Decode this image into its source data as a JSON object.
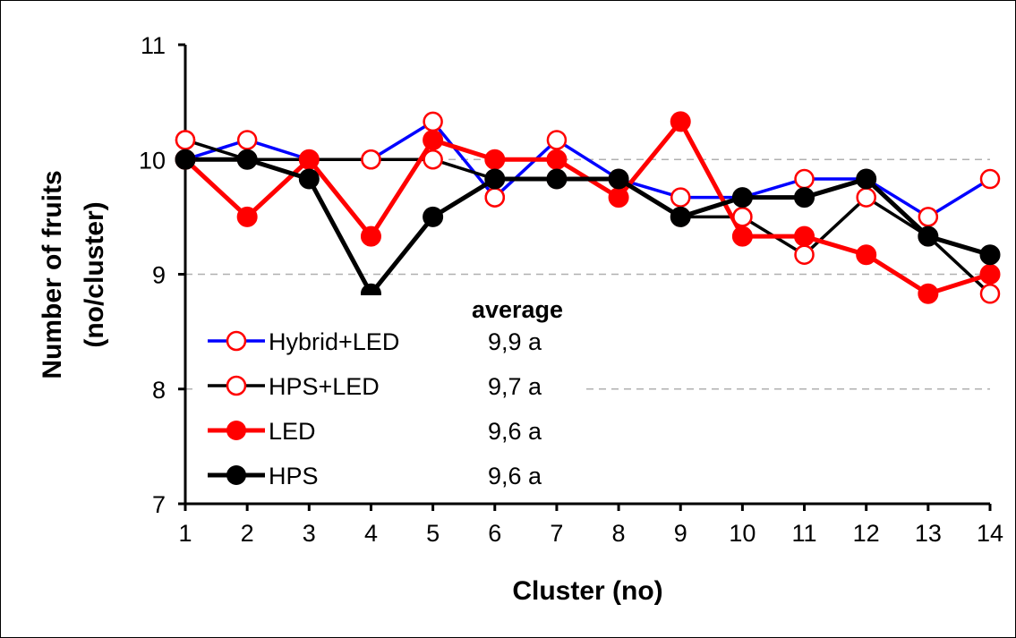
{
  "chart_data": {
    "type": "line",
    "title": "",
    "xlabel": "Cluster (no)",
    "ylabel": "Number of fruits (no/cluster)",
    "ylabel_lines": [
      "Number of fruits",
      "(no/cluster)"
    ],
    "xlim": [
      1,
      14
    ],
    "ylim": [
      7,
      11
    ],
    "x": [
      1,
      2,
      3,
      4,
      5,
      6,
      7,
      8,
      9,
      10,
      11,
      12,
      13,
      14
    ],
    "x_ticks": [
      "1",
      "2",
      "3",
      "4",
      "5",
      "6",
      "7",
      "8",
      "9",
      "10",
      "11",
      "12",
      "13",
      "14"
    ],
    "y_ticks": [
      "7",
      "8",
      "9",
      "10",
      "11"
    ],
    "grid": "horizontal dashed",
    "legend_placement": "bottom-left",
    "average_title": "average",
    "series": [
      {
        "name": "Hybrid+LED",
        "line_color": "#0000ff",
        "marker": "open-circle",
        "marker_color": "#ff0000",
        "values": [
          10.0,
          10.17,
          10.0,
          10.0,
          10.33,
          9.67,
          10.17,
          9.83,
          9.67,
          9.67,
          9.83,
          9.83,
          9.5,
          9.83
        ],
        "marker_values": [
          10.17,
          10.17,
          10.0,
          10.0,
          10.33,
          9.67,
          10.17,
          9.83,
          9.67,
          9.5,
          9.83,
          9.83,
          9.5,
          9.83
        ],
        "average": "9,9 a"
      },
      {
        "name": "HPS+LED",
        "line_color": "#000000",
        "marker": "open-circle",
        "marker_color": "#ff0000",
        "values": [
          10.17,
          10.0,
          10.0,
          10.0,
          10.0,
          9.83,
          9.83,
          9.83,
          9.5,
          9.5,
          9.17,
          9.67,
          9.33,
          8.83
        ],
        "marker_values": [
          10.17,
          10.0,
          10.0,
          10.0,
          10.0,
          9.67,
          9.83,
          9.83,
          9.5,
          9.5,
          9.17,
          9.67,
          9.33,
          8.83
        ],
        "average": "9,7 a"
      },
      {
        "name": "LED",
        "line_color": "#ff0000",
        "marker": "filled-circle",
        "marker_color": "#ff0000",
        "values": [
          10.0,
          9.5,
          10.0,
          9.33,
          10.17,
          10.0,
          10.0,
          9.67,
          10.33,
          9.33,
          9.33,
          9.17,
          8.83,
          9.0
        ],
        "average": "9,6 a"
      },
      {
        "name": "HPS",
        "line_color": "#000000",
        "marker": "filled-circle",
        "marker_color": "#000000",
        "values": [
          10.0,
          10.0,
          9.83,
          8.83,
          9.5,
          9.83,
          9.83,
          9.83,
          9.5,
          9.67,
          9.67,
          9.83,
          9.33,
          9.17
        ],
        "average": "9,6 a"
      }
    ]
  }
}
